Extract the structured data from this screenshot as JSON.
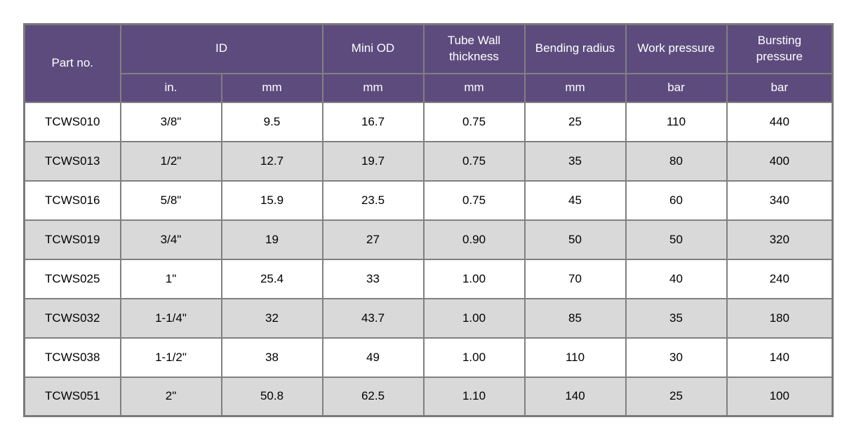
{
  "table": {
    "header": {
      "part_no": "Part no.",
      "id_group": "ID",
      "mini_od": "Mini OD",
      "tube_wall_thickness": "Tube Wall thickness",
      "bending_radius": "Bending radius",
      "work_pressure": "Work pressure",
      "bursting_pressure": "Bursting pressure",
      "units": [
        "in.",
        "mm",
        "mm",
        "mm",
        "mm",
        "bar",
        "bar"
      ]
    },
    "rows": [
      [
        "TCWS010",
        "3/8\"",
        "9.5",
        "16.7",
        "0.75",
        "25",
        "110",
        "440"
      ],
      [
        "TCWS013",
        "1/2\"",
        "12.7",
        "19.7",
        "0.75",
        "35",
        "80",
        "400"
      ],
      [
        "TCWS016",
        "5/8\"",
        "15.9",
        "23.5",
        "0.75",
        "45",
        "60",
        "340"
      ],
      [
        "TCWS019",
        "3/4\"",
        "19",
        "27",
        "0.90",
        "50",
        "50",
        "320"
      ],
      [
        "TCWS025",
        "1\"",
        "25.4",
        "33",
        "1.00",
        "70",
        "40",
        "240"
      ],
      [
        "TCWS032",
        "1-1/4\"",
        "32",
        "43.7",
        "1.00",
        "85",
        "35",
        "180"
      ],
      [
        "TCWS038",
        "1-1/2\"",
        "38",
        "49",
        "1.00",
        "110",
        "30",
        "140"
      ],
      [
        "TCWS051",
        "2\"",
        "50.8",
        "62.5",
        "1.10",
        "140",
        "25",
        "100"
      ]
    ]
  },
  "colors": {
    "header_bg": "#5e4b7e",
    "header_text": "#ffffff",
    "row_bg": "#ffffff",
    "row_alt_bg": "#d9d9d9",
    "border": "#808080",
    "text": "#000000"
  }
}
